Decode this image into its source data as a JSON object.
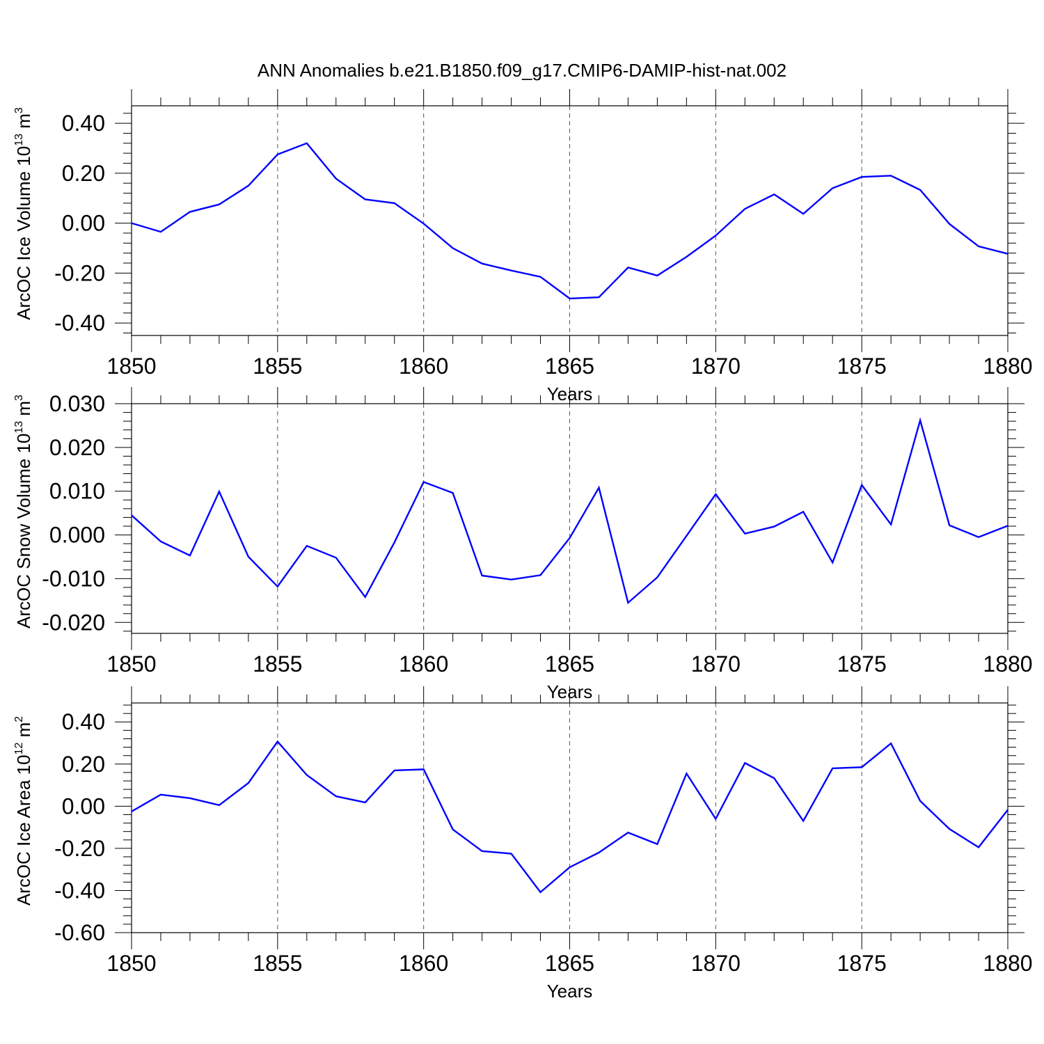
{
  "title": "ANN Anomalies b.e21.B1850.f09_g17.CMIP6-DAMIP-hist-nat.002",
  "line_color": "#0000ff",
  "chart_data": [
    {
      "type": "line",
      "title": "ANN Anomalies b.e21.B1850.f09_g17.CMIP6-DAMIP-hist-nat.002",
      "ylabel": "ArcOC Ice Volume 10",
      "ylabel_sup": "13",
      "ylabel_unit": "m",
      "ylabel_unit_sup": "3",
      "xlabel": "Years",
      "xlim": [
        1850,
        1880
      ],
      "ylim": [
        -0.45,
        0.47
      ],
      "xticks": [
        1850,
        1855,
        1860,
        1865,
        1870,
        1875,
        1880
      ],
      "yticks": [
        -0.4,
        -0.2,
        0.0,
        0.2,
        0.4
      ],
      "ytick_labels": [
        "-0.40",
        "-0.20",
        "0.00",
        "0.20",
        "0.40"
      ],
      "grid": "vertical dashed at major x ticks",
      "x": [
        1850,
        1851,
        1852,
        1853,
        1854,
        1855,
        1856,
        1857,
        1858,
        1859,
        1860,
        1861,
        1862,
        1863,
        1864,
        1865,
        1866,
        1867,
        1868,
        1869,
        1870,
        1871,
        1872,
        1873,
        1874,
        1875,
        1876,
        1877,
        1878,
        1879,
        1880
      ],
      "values": [
        0.0,
        -0.035,
        0.045,
        0.075,
        0.15,
        0.275,
        0.32,
        0.178,
        0.095,
        0.08,
        -0.002,
        -0.1,
        -0.162,
        -0.19,
        -0.215,
        -0.302,
        -0.297,
        -0.178,
        -0.21,
        -0.135,
        -0.05,
        0.057,
        0.115,
        0.037,
        0.14,
        0.185,
        0.19,
        0.133,
        -0.003,
        -0.093,
        -0.123
      ]
    },
    {
      "type": "line",
      "ylabel": "ArcOC Snow Volume 10",
      "ylabel_sup": "13",
      "ylabel_unit": "m",
      "ylabel_unit_sup": "3",
      "xlabel": "Years",
      "xlim": [
        1850,
        1880
      ],
      "ylim": [
        -0.0225,
        0.03
      ],
      "xticks": [
        1850,
        1855,
        1860,
        1865,
        1870,
        1875,
        1880
      ],
      "yticks": [
        -0.02,
        -0.01,
        0.0,
        0.01,
        0.02,
        0.03
      ],
      "ytick_labels": [
        "-0.020",
        "-0.010",
        "0.000",
        "0.010",
        "0.020",
        "0.030"
      ],
      "grid": "vertical dashed at major x ticks",
      "x": [
        1850,
        1851,
        1852,
        1853,
        1854,
        1855,
        1856,
        1857,
        1858,
        1859,
        1860,
        1861,
        1862,
        1863,
        1864,
        1865,
        1866,
        1867,
        1868,
        1869,
        1870,
        1871,
        1872,
        1873,
        1874,
        1875,
        1876,
        1877,
        1878,
        1879,
        1880
      ],
      "values": [
        0.0045,
        -0.0015,
        -0.0047,
        0.0099,
        -0.005,
        -0.0118,
        -0.0025,
        -0.0052,
        -0.0142,
        -0.0017,
        0.0121,
        0.0096,
        -0.0093,
        -0.0102,
        -0.0092,
        -0.0007,
        0.0108,
        -0.0155,
        -0.0097,
        -0.0002,
        0.0093,
        0.0003,
        0.0019,
        0.0053,
        -0.0063,
        0.0114,
        0.0024,
        0.0262,
        0.0022,
        -0.0005,
        0.0021
      ]
    },
    {
      "type": "line",
      "ylabel": "ArcOC Ice Area 10",
      "ylabel_sup": "12",
      "ylabel_unit": "m",
      "ylabel_unit_sup": "2",
      "xlabel": "Years",
      "xlim": [
        1850,
        1880
      ],
      "ylim": [
        -0.6,
        0.49
      ],
      "xticks": [
        1850,
        1855,
        1860,
        1865,
        1870,
        1875,
        1880
      ],
      "yticks": [
        -0.6,
        -0.4,
        -0.2,
        0.0,
        0.2,
        0.4
      ],
      "ytick_labels": [
        "-0.60",
        "-0.40",
        "-0.20",
        "0.00",
        "0.20",
        "0.40"
      ],
      "grid": "vertical dashed at major x ticks",
      "x": [
        1850,
        1851,
        1852,
        1853,
        1854,
        1855,
        1856,
        1857,
        1858,
        1859,
        1860,
        1861,
        1862,
        1863,
        1864,
        1865,
        1866,
        1867,
        1868,
        1869,
        1870,
        1871,
        1872,
        1873,
        1874,
        1875,
        1876,
        1877,
        1878,
        1879,
        1880
      ],
      "values": [
        -0.025,
        0.055,
        0.038,
        0.005,
        0.11,
        0.307,
        0.148,
        0.047,
        0.018,
        0.17,
        0.175,
        -0.11,
        -0.213,
        -0.225,
        -0.408,
        -0.29,
        -0.22,
        -0.125,
        -0.18,
        0.155,
        -0.06,
        0.205,
        0.133,
        -0.07,
        0.18,
        0.185,
        0.298,
        0.025,
        -0.108,
        -0.195,
        -0.017
      ]
    }
  ]
}
